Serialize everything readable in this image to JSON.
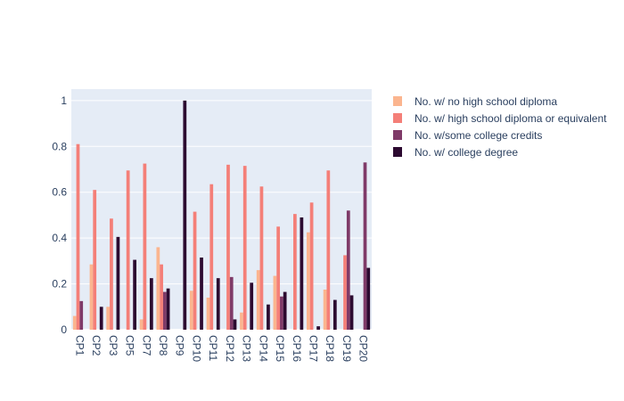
{
  "chart_data": {
    "type": "bar",
    "categories": [
      "CP1",
      "CP2",
      "CP3",
      "CP5",
      "CP7",
      "CP8",
      "CP9",
      "CP10",
      "CP11",
      "CP12",
      "CP13",
      "CP14",
      "CP15",
      "CP16",
      "CP17",
      "CP18",
      "CP19",
      "CP20"
    ],
    "series": [
      {
        "name": "No. w/ no high school diploma",
        "color": "#fbb58f",
        "values": [
          0.06,
          0.285,
          0.1,
          0.0,
          0.045,
          0.36,
          0.0,
          0.17,
          0.14,
          0.0,
          0.075,
          0.26,
          0.235,
          0.0,
          0.425,
          0.175,
          0.0,
          0.0
        ]
      },
      {
        "name": "No. w/ high school diploma or equivalent",
        "color": "#f47f78",
        "values": [
          0.81,
          0.61,
          0.485,
          0.695,
          0.725,
          0.285,
          0.0,
          0.515,
          0.635,
          0.72,
          0.715,
          0.625,
          0.45,
          0.505,
          0.555,
          0.695,
          0.325,
          0.0
        ]
      },
      {
        "name": "No. w/some college credits",
        "color": "#7f3a68",
        "values": [
          0.125,
          0.0,
          0.0,
          0.0,
          0.0,
          0.165,
          0.0,
          0.0,
          0.0,
          0.23,
          0.0,
          0.0,
          0.145,
          0.0,
          0.0,
          0.0,
          0.52,
          0.73
        ]
      },
      {
        "name": "No. w/ college degree",
        "color": "#2c0a30",
        "values": [
          0.0,
          0.1,
          0.405,
          0.305,
          0.225,
          0.18,
          1.0,
          0.315,
          0.225,
          0.045,
          0.205,
          0.11,
          0.165,
          0.49,
          0.015,
          0.13,
          0.15,
          0.27
        ]
      }
    ],
    "yticks": [
      "0",
      "0.2",
      "0.4",
      "0.6",
      "0.8",
      "1"
    ],
    "ylim": [
      0,
      1.05
    ],
    "grid": true,
    "legend_position": "right",
    "plot_background": "#e5ecf6"
  }
}
